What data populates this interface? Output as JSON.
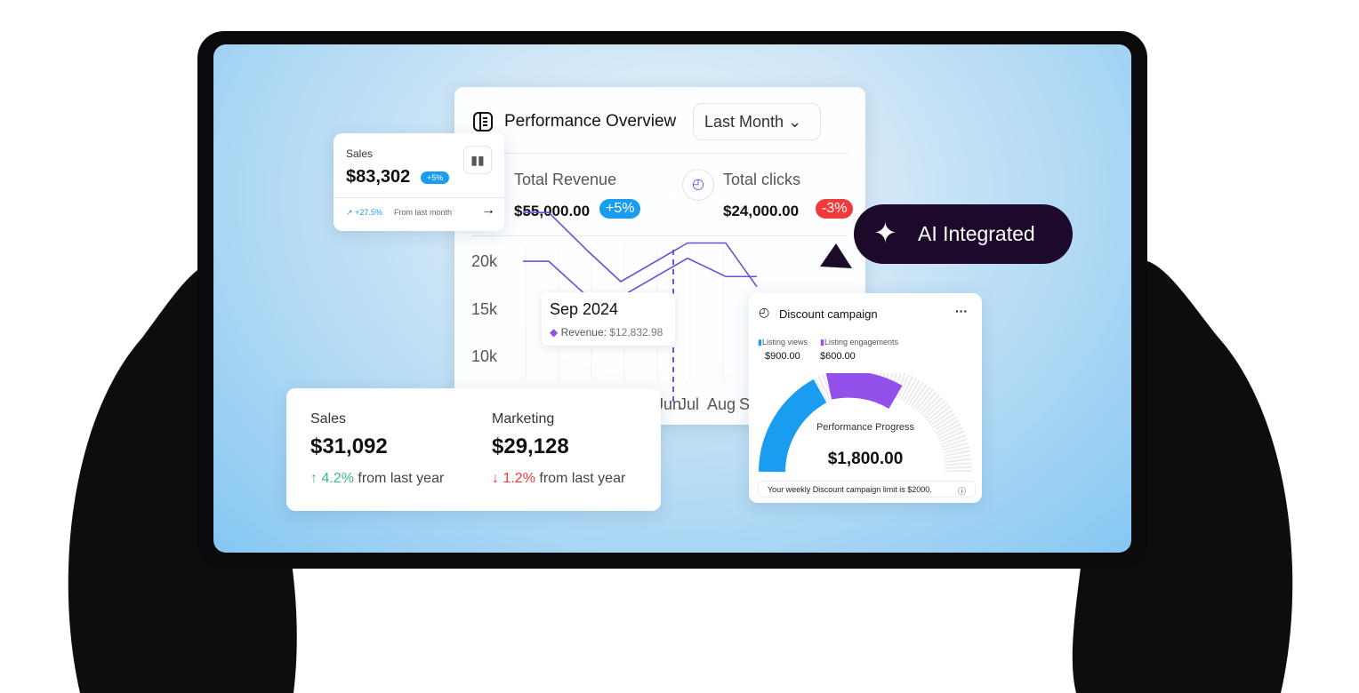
{
  "performance": {
    "title": "Performance Overview",
    "range": "Last Month",
    "total_revenue_label": "Total Revenue",
    "total_revenue": "$55,000.00",
    "total_revenue_change": "+5%",
    "total_clicks_label": "Total clicks",
    "total_clicks": "$24,000.00",
    "total_clicks_change": "-3%"
  },
  "chart_data": {
    "type": "line",
    "yticks": [
      "20k",
      "15k",
      "10k"
    ],
    "xticks": [
      "Jun",
      "Jul",
      "Aug",
      "Sep"
    ],
    "ylim": [
      8000,
      21000
    ],
    "series": [
      {
        "values": [
          18800,
          18800,
          15000,
          12000,
          15800,
          15800,
          11500
        ]
      },
      {
        "values": [
          14000,
          14000,
          10500,
          10500,
          14300,
          12500,
          12500
        ]
      }
    ],
    "tooltip": {
      "title": "Sep 2024",
      "label": "Revenue:",
      "value": "$12,832.98"
    }
  },
  "sales_card": {
    "label": "Sales",
    "value": "$83,302",
    "badge": "+5%",
    "trend": "+27.5%",
    "trend_text": "From last month"
  },
  "ai_badge": {
    "label": "AI Integrated"
  },
  "summary": {
    "sales_label": "Sales",
    "sales_value": "$31,092",
    "sales_change": "4.2%",
    "sales_suffix": "from last year",
    "marketing_label": "Marketing",
    "marketing_value": "$29,128",
    "marketing_change": "1.2%",
    "marketing_suffix": "from last year"
  },
  "discount": {
    "title": "Discount campaign",
    "legend": [
      {
        "label": "Listing views",
        "value": "$900.00",
        "color": "#1a9cf0"
      },
      {
        "label": "Listing engagements",
        "value": "$600.00",
        "color": "#9350ea"
      }
    ],
    "center_label": "Performance Progress",
    "center_value": "$1,800.00",
    "limit_text": "Your weekly Discount campaign limit is $2000."
  },
  "colors": {
    "blue": "#1a9cf0",
    "purple": "#9350ea",
    "red": "#ef3b3b",
    "green": "#3fb98a",
    "dark": "#1d0a2b"
  }
}
